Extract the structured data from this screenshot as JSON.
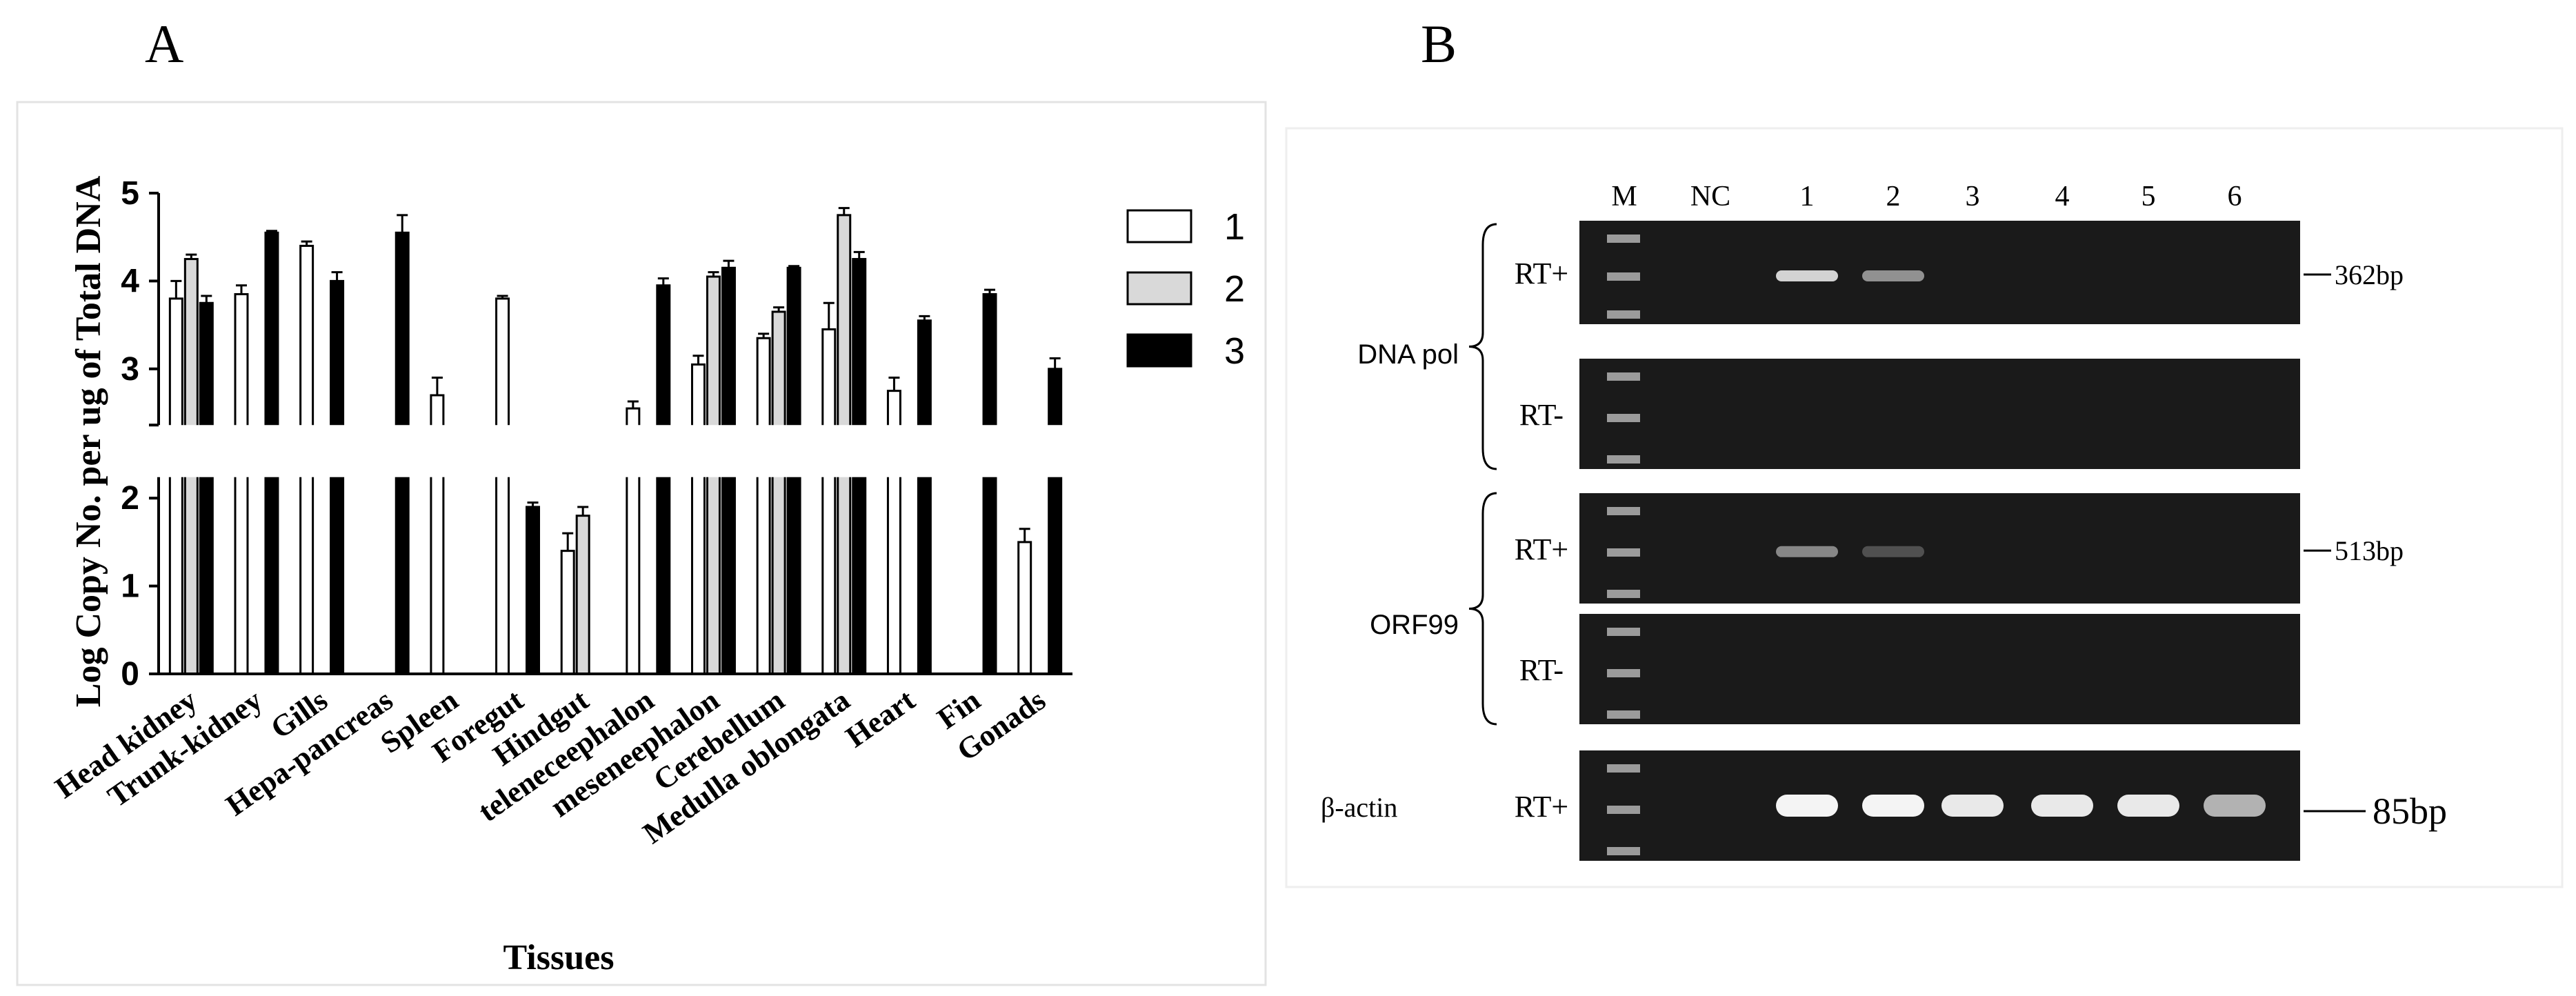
{
  "panels": {
    "a_letter": "A",
    "b_letter": "B"
  },
  "colors": {
    "s1": "#ffffff",
    "s2": "#d9d9d9",
    "s3": "#000000",
    "gel_bg": "#1a1a1a",
    "band": "#f4f4f4"
  },
  "chart_data": {
    "type": "bar",
    "title": "",
    "xlabel": "Tissues",
    "ylabel": "Log Copy No. per ug of Total DNA",
    "ylim": [
      0,
      5
    ],
    "axis_break": [
      2.2,
      2.4
    ],
    "yticks": [
      "0",
      "1",
      "2",
      "3",
      "4",
      "5"
    ],
    "legend_position": "top-right",
    "categories": [
      "Head kidney",
      "Trunk-kidney",
      "Gills",
      "Hepa-pancreas",
      "Spleen",
      "Foregut",
      "Hindgut",
      "teleneceephalon",
      "meseneephalon",
      "Cerebellum",
      "Medulla oblongata",
      "Heart",
      "Fin",
      "Gonads"
    ],
    "series": [
      {
        "name": "1",
        "values": [
          3.8,
          3.85,
          4.4,
          null,
          2.7,
          3.8,
          1.4,
          2.55,
          3.05,
          3.35,
          3.45,
          2.75,
          null,
          1.5
        ],
        "errors": [
          0.2,
          0.1,
          0.05,
          null,
          0.2,
          0.03,
          0.2,
          0.08,
          0.1,
          0.05,
          0.3,
          0.15,
          null,
          0.15
        ]
      },
      {
        "name": "2",
        "values": [
          4.25,
          null,
          null,
          null,
          null,
          null,
          1.8,
          null,
          4.05,
          3.65,
          4.75,
          null,
          null,
          null
        ],
        "errors": [
          0.05,
          null,
          null,
          null,
          null,
          null,
          0.1,
          null,
          0.05,
          0.05,
          0.08,
          null,
          null,
          null
        ]
      },
      {
        "name": "3",
        "values": [
          3.75,
          4.55,
          4.0,
          4.55,
          null,
          1.9,
          null,
          3.95,
          4.15,
          4.15,
          4.25,
          3.55,
          3.85,
          3.0
        ],
        "errors": [
          0.08,
          0.02,
          0.1,
          0.2,
          null,
          0.05,
          null,
          0.08,
          0.08,
          0.02,
          0.08,
          0.05,
          0.05,
          0.12
        ]
      }
    ]
  },
  "gel": {
    "lane_labels": [
      "M",
      "NC",
      "1",
      "2",
      "3",
      "4",
      "5",
      "6"
    ],
    "groups": [
      {
        "label": "DNA pol",
        "rows": [
          "RT+",
          "RT-"
        ],
        "size_label": "362bp"
      },
      {
        "label": "ORF99",
        "rows": [
          "RT+",
          "RT-"
        ],
        "size_label": "513bp"
      },
      {
        "label": "β-actin",
        "rows": [
          "RT+"
        ],
        "size_label": "85bp"
      }
    ]
  }
}
